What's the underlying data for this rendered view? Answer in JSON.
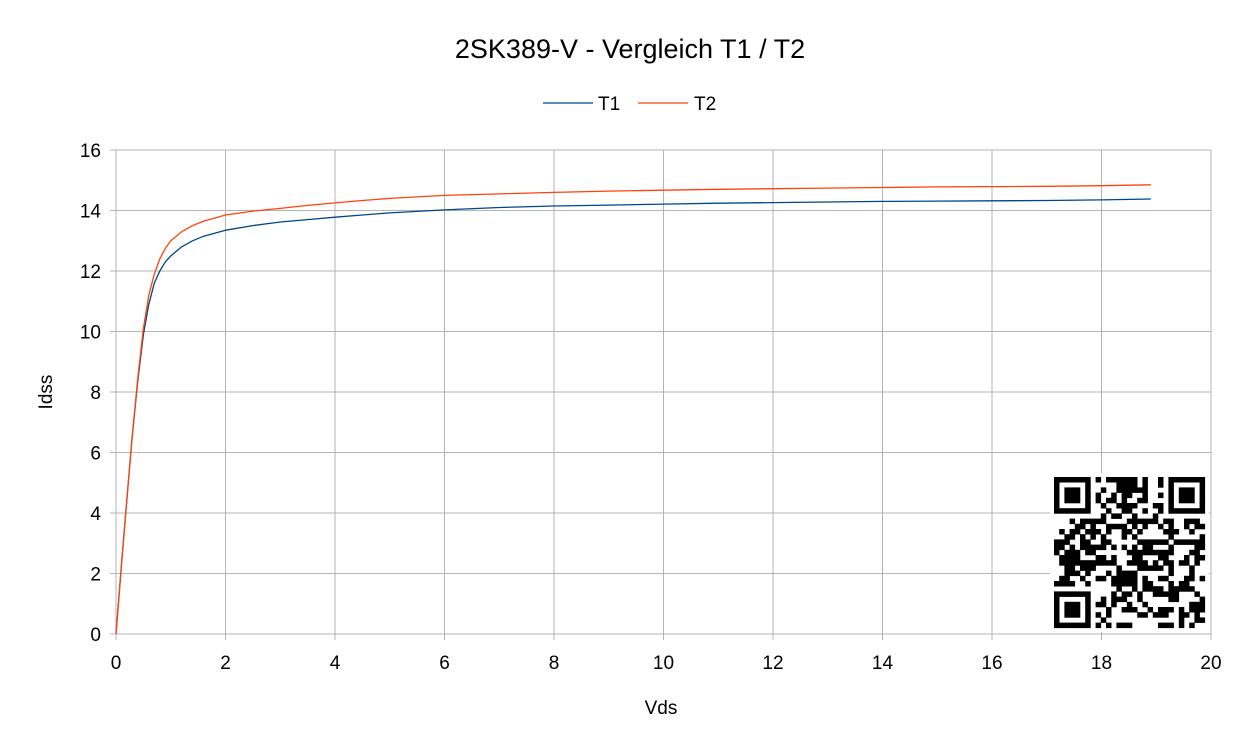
{
  "chart_data": {
    "type": "line",
    "title": "2SK389-V - Vergleich T1 / T2",
    "xlabel": "Vds",
    "ylabel": "Idss",
    "xlim": [
      0,
      20
    ],
    "ylim": [
      0,
      16
    ],
    "x_ticks": [
      0,
      2,
      4,
      6,
      8,
      10,
      12,
      14,
      16,
      18,
      20
    ],
    "y_ticks": [
      0,
      2,
      4,
      6,
      8,
      10,
      12,
      14,
      16
    ],
    "grid": true,
    "legend_position": "top",
    "series": [
      {
        "name": "T1",
        "color": "#004586",
        "x": [
          0,
          0.1,
          0.2,
          0.3,
          0.4,
          0.5,
          0.6,
          0.7,
          0.8,
          0.9,
          1.0,
          1.2,
          1.4,
          1.6,
          1.8,
          2.0,
          2.5,
          3.0,
          3.5,
          4.0,
          4.5,
          5.0,
          5.5,
          6.0,
          7.0,
          8.0,
          9.0,
          10.0,
          11.0,
          12.0,
          13.0,
          14.0,
          15.0,
          16.0,
          17.0,
          18.0,
          18.9
        ],
        "y": [
          0,
          2.3,
          4.5,
          6.6,
          8.4,
          9.9,
          10.9,
          11.6,
          12.0,
          12.3,
          12.5,
          12.8,
          13.0,
          13.15,
          13.25,
          13.35,
          13.5,
          13.62,
          13.7,
          13.78,
          13.85,
          13.92,
          13.97,
          14.02,
          14.1,
          14.15,
          14.18,
          14.21,
          14.24,
          14.26,
          14.28,
          14.3,
          14.31,
          14.32,
          14.33,
          14.35,
          14.38
        ]
      },
      {
        "name": "T2",
        "color": "#ff420e",
        "x": [
          0,
          0.1,
          0.2,
          0.3,
          0.4,
          0.5,
          0.6,
          0.7,
          0.8,
          0.9,
          1.0,
          1.2,
          1.4,
          1.6,
          1.8,
          2.0,
          2.5,
          3.0,
          3.5,
          4.0,
          4.5,
          5.0,
          5.5,
          6.0,
          7.0,
          8.0,
          9.0,
          10.0,
          11.0,
          12.0,
          13.0,
          14.0,
          15.0,
          16.0,
          17.0,
          18.0,
          18.9
        ],
        "y": [
          0,
          2.3,
          4.5,
          6.6,
          8.5,
          10.1,
          11.2,
          11.9,
          12.4,
          12.75,
          13.0,
          13.3,
          13.5,
          13.65,
          13.75,
          13.85,
          13.98,
          14.07,
          14.17,
          14.25,
          14.33,
          14.4,
          14.45,
          14.5,
          14.55,
          14.6,
          14.64,
          14.67,
          14.7,
          14.72,
          14.74,
          14.76,
          14.78,
          14.79,
          14.8,
          14.82,
          14.85
        ]
      }
    ]
  }
}
